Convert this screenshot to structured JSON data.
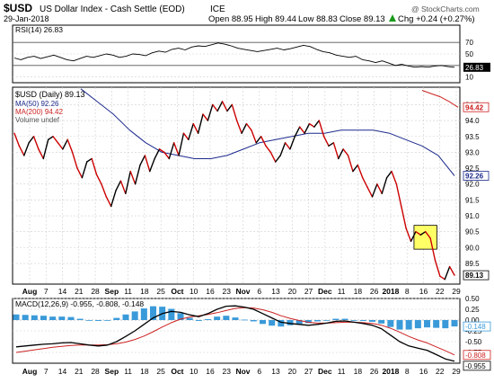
{
  "header": {
    "symbol": "$USD",
    "description": "US Dollar Index - Cash Settle (EOD)",
    "exchange": "ICE",
    "date": "29-Jan-2018",
    "open": "Open 88.95",
    "high": "High 89.44",
    "low": "Low 88.83",
    "close": "Close 89.13",
    "change": "Chg +0.24 (+0.27%)",
    "change_arrow": "arrow-up-icon",
    "watermark": "@ StockCharts.com"
  },
  "colors": {
    "price": "#000000",
    "price_down": "#cc0000",
    "ma50": "#1c2a8c",
    "ma200": "#cc2222",
    "rsi": "#000000",
    "macd": "#000000",
    "macd_signal": "#cc2222",
    "histogram": "#3a9ad9",
    "highlight": "#ffff66",
    "grid": "#d0d0d0"
  },
  "chart_data": [
    {
      "type": "line",
      "panel": "rsi",
      "legend": [
        "RSI(14) 26.83"
      ],
      "ylim": [
        0,
        100
      ],
      "y_ticks": [
        "70",
        "50",
        "30",
        "10"
      ],
      "last_value_label": "26.83",
      "series": [
        {
          "name": "RSI(14)",
          "values": [
            43,
            40,
            44,
            46,
            42,
            45,
            48,
            44,
            40,
            38,
            42,
            46,
            44,
            47,
            50,
            48,
            44,
            46,
            50,
            49,
            47,
            52,
            55,
            53,
            58,
            60,
            57,
            62,
            64,
            63,
            66,
            69,
            67,
            64,
            60,
            58,
            56,
            54,
            56,
            58,
            60,
            57,
            59,
            62,
            65,
            63,
            58,
            54,
            52,
            48,
            46,
            44,
            46,
            40,
            38,
            35,
            38,
            34,
            30,
            32,
            29,
            27,
            28,
            27,
            29,
            30,
            28,
            26.83
          ]
        }
      ]
    },
    {
      "type": "line",
      "panel": "price",
      "legend": [
        "$USD (Daily) 89.13",
        "MA(50) 92.26",
        "MA(200) 94.42",
        "Volume undef"
      ],
      "ylim": [
        88.85,
        95.05
      ],
      "y_ticks": [
        "94.5",
        "94.0",
        "93.5",
        "93.0",
        "92.5",
        "92.0",
        "91.5",
        "91.0",
        "90.5",
        "90.0",
        "89.5"
      ],
      "value_labels": [
        "94.42",
        "92.26",
        "89.13"
      ],
      "x_tick_labels": [
        "Aug",
        "7",
        "14",
        "21",
        "28",
        "Sep",
        "11",
        "18",
        "25",
        "Oct",
        "10",
        "16",
        "23",
        "Nov",
        "6",
        "13",
        "20",
        "27",
        "Dec",
        "11",
        "18",
        "26",
        "2018",
        "8",
        "16",
        "22",
        "29"
      ],
      "series": [
        {
          "name": "$USD (Daily)",
          "values": [
            93.6,
            93.2,
            92.9,
            93.3,
            93.5,
            93.1,
            92.8,
            93.4,
            93.5,
            93.3,
            93.1,
            93.4,
            93.0,
            92.5,
            92.2,
            92.7,
            92.8,
            92.3,
            92.0,
            91.6,
            91.3,
            91.8,
            92.1,
            91.7,
            92.4,
            92.0,
            92.6,
            92.9,
            92.4,
            92.8,
            93.1,
            93.0,
            92.8,
            93.3,
            92.9,
            93.6,
            93.4,
            93.9,
            93.6,
            94.2,
            94.0,
            94.5,
            94.3,
            94.6,
            94.3,
            94.5,
            94.0,
            93.6,
            93.9,
            93.7,
            93.3,
            93.5,
            93.2,
            93.0,
            92.7,
            92.9,
            93.3,
            93.1,
            93.5,
            93.8,
            93.6,
            93.9,
            93.8,
            94.0,
            93.5,
            93.2,
            93.3,
            92.8,
            93.1,
            92.9,
            92.4,
            92.6,
            92.2,
            91.9,
            91.6,
            92.0,
            91.7,
            92.2,
            92.4,
            92.0,
            91.3,
            90.6,
            90.2,
            90.5,
            90.4,
            90.5,
            90.3,
            89.6,
            89.1,
            89.0,
            89.4,
            89.13
          ]
        },
        {
          "name": "MA(50)",
          "values": [
            95.0,
            94.6,
            94.2,
            93.7,
            93.3,
            93.0,
            92.9,
            92.8,
            92.8,
            92.9,
            93.1,
            93.3,
            93.4,
            93.5,
            93.6,
            93.6,
            93.7,
            93.7,
            93.7,
            93.6,
            93.4,
            93.2,
            92.9,
            92.26
          ]
        },
        {
          "name": "MA(200)",
          "values": [
            94.95,
            94.85,
            94.75,
            94.6,
            94.42
          ]
        }
      ]
    },
    {
      "type": "line",
      "panel": "macd",
      "legend": [
        "MACD(12,26,9) -0.955, -0.808, -0.148"
      ],
      "ylim": [
        -1.0,
        0.5
      ],
      "y_ticks": [
        "0.50",
        "0.25",
        "0.00",
        "-0.25",
        "-0.50",
        "-0.75"
      ],
      "value_labels": [
        "-0.148",
        "-0.808",
        "-0.955"
      ],
      "series": [
        {
          "name": "MACD",
          "values": [
            -0.62,
            -0.6,
            -0.58,
            -0.56,
            -0.55,
            -0.53,
            -0.52,
            -0.55,
            -0.58,
            -0.6,
            -0.58,
            -0.5,
            -0.38,
            -0.25,
            -0.1,
            0.05,
            0.15,
            0.2,
            0.18,
            0.12,
            0.08,
            0.15,
            0.25,
            0.32,
            0.33,
            0.3,
            0.25,
            0.15,
            0.05,
            -0.05,
            -0.08,
            -0.1,
            -0.12,
            -0.1,
            -0.07,
            -0.03,
            -0.02,
            -0.05,
            -0.08,
            -0.12,
            -0.2,
            -0.35,
            -0.5,
            -0.6,
            -0.65,
            -0.7,
            -0.8,
            -0.9,
            -0.955
          ]
        },
        {
          "name": "Signal",
          "values": [
            -0.75,
            -0.72,
            -0.69,
            -0.66,
            -0.63,
            -0.61,
            -0.59,
            -0.58,
            -0.58,
            -0.58,
            -0.57,
            -0.55,
            -0.51,
            -0.45,
            -0.37,
            -0.27,
            -0.16,
            -0.06,
            0.02,
            0.07,
            0.1,
            0.13,
            0.17,
            0.22,
            0.27,
            0.29,
            0.28,
            0.24,
            0.18,
            0.1,
            0.04,
            -0.01,
            -0.05,
            -0.07,
            -0.07,
            -0.06,
            -0.05,
            -0.05,
            -0.06,
            -0.08,
            -0.12,
            -0.19,
            -0.28,
            -0.38,
            -0.46,
            -0.53,
            -0.62,
            -0.71,
            -0.808
          ]
        },
        {
          "name": "Histogram",
          "values": [
            0.13,
            0.12,
            0.11,
            0.1,
            0.08,
            0.08,
            0.07,
            0.03,
            0.0,
            -0.02,
            -0.01,
            0.05,
            0.13,
            0.2,
            0.27,
            0.32,
            0.31,
            0.26,
            0.16,
            0.05,
            -0.02,
            0.02,
            0.08,
            0.1,
            0.06,
            0.01,
            -0.03,
            -0.09,
            -0.13,
            -0.15,
            -0.12,
            -0.09,
            -0.07,
            -0.03,
            0.0,
            0.03,
            0.03,
            0.0,
            -0.02,
            -0.04,
            -0.08,
            -0.16,
            -0.22,
            -0.22,
            -0.19,
            -0.17,
            -0.18,
            -0.19,
            -0.148
          ]
        }
      ]
    }
  ]
}
